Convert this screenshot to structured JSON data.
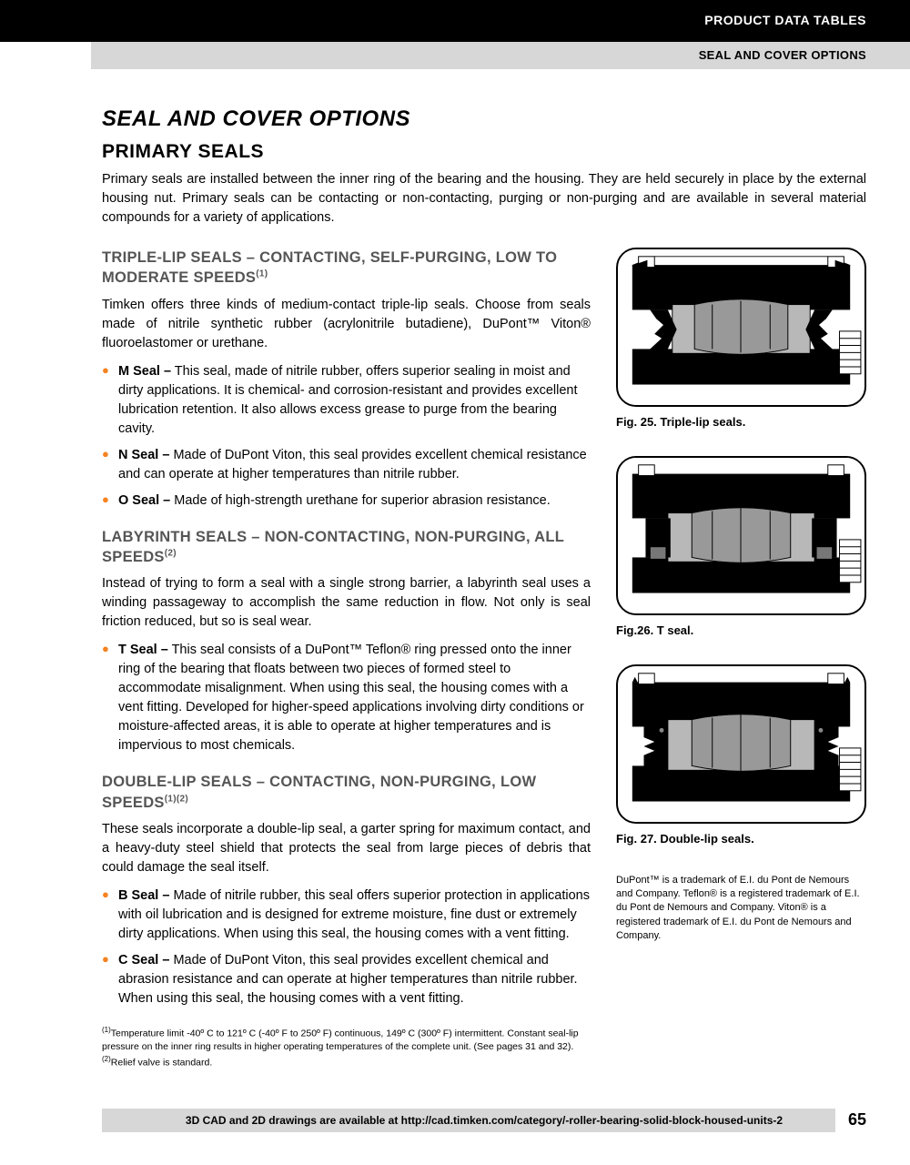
{
  "header": {
    "top_label": "PRODUCT DATA TABLES",
    "sub_label": "SEAL AND COVER OPTIONS"
  },
  "main_title": "SEAL AND COVER OPTIONS",
  "primary_title": "PRIMARY SEALS",
  "intro": "Primary seals are installed between the inner ring of the bearing and the housing. They are held securely in place by the external housing nut. Primary seals can be contacting or non-contacting, purging or non-purging and are available in several material compounds for a variety of applications.",
  "sections": [
    {
      "heading_html": "TRIPLE-LIP SEALS – CONTACTING, SELF-PURGING, LOW TO MODERATE SPEEDS<sup>(1)</sup>",
      "body": "Timken offers three kinds of medium-contact triple-lip seals. Choose from seals made of nitrile synthetic rubber (acrylonitrile butadiene), DuPont™ Viton® fluoroelastomer or urethane.",
      "bullets": [
        "<b>M Seal –</b> This seal, made of nitrile rubber, offers superior sealing in moist and dirty applications. It is chemical- and corrosion-resistant and provides excellent lubrication retention. It also allows excess grease to purge from the bearing cavity.",
        "<b>N Seal –</b> Made of DuPont Viton, this seal provides excellent chemical resistance and can operate at higher temperatures than nitrile rubber.",
        "<b>O Seal –</b> Made of high-strength urethane for superior abrasion resistance."
      ],
      "fig_caption": "Fig. 25. Triple-lip seals."
    },
    {
      "heading_html": "LABYRINTH SEALS – NON-CONTACTING, NON-PURGING, ALL SPEEDS<sup>(2)</sup>",
      "body": "Instead of trying to form a seal with a single strong barrier, a labyrinth seal uses a winding passageway to accomplish the same reduction in flow. Not only is seal friction reduced, but so is seal wear.",
      "bullets": [
        "<b>T Seal –</b> This seal consists of a DuPont™ Teflon® ring pressed onto the inner ring of the bearing that floats between two pieces of formed steel to accommodate misalignment. When using this seal, the housing comes with a vent fitting. Developed for higher-speed applications involving dirty conditions or moisture-affected areas, it is able to operate at higher temperatures and is impervious to most chemicals."
      ],
      "fig_caption": "Fig.26. T seal."
    },
    {
      "heading_html": "DOUBLE-LIP SEALS – CONTACTING, NON-PURGING, LOW SPEEDS<sup>(1)(2)</sup>",
      "body": "These seals incorporate a double-lip seal, a garter spring for maximum contact, and a heavy-duty steel shield that protects the seal from large pieces of debris that could damage the seal itself.",
      "bullets": [
        "<b>B Seal –</b> Made of nitrile rubber, this seal offers superior protection in applications with oil lubrication and is designed for extreme moisture, fine dust or extremely dirty applications. When using this seal, the housing comes with a vent fitting.",
        "<b>C Seal –</b> Made of DuPont Viton, this seal provides excellent chemical and abrasion resistance and can operate at higher temperatures than nitrile rubber. When using this seal, the housing comes with a vent fitting."
      ],
      "fig_caption": "Fig. 27. Double-lip seals."
    }
  ],
  "footnote1": "(1)Temperature limit -40º C to 121º C (-40º F to 250º F) continuous, 149º C (300º F) intermittent. Constant seal-lip pressure on the inner ring results in higher operating temperatures of the complete unit. (See pages 31 and 32).",
  "footnote2": "(2)Relief valve is standard.",
  "trademark": "DuPont™ is a trademark of E.I. du Pont de Nemours and Company. Teflon® is a registered trademark of E.I. du Pont de Nemours and Company. Viton® is a registered trademark of E.I. du Pont de Nemours and Company.",
  "footer_text": "3D CAD and 2D drawings are available at http://cad.timken.com/category/-roller-bearing-solid-block-housed-units-2",
  "page_number": "65",
  "colors": {
    "bullet": "#f58220",
    "heading_gray": "#555555",
    "bar_gray": "#d7d7d7"
  }
}
